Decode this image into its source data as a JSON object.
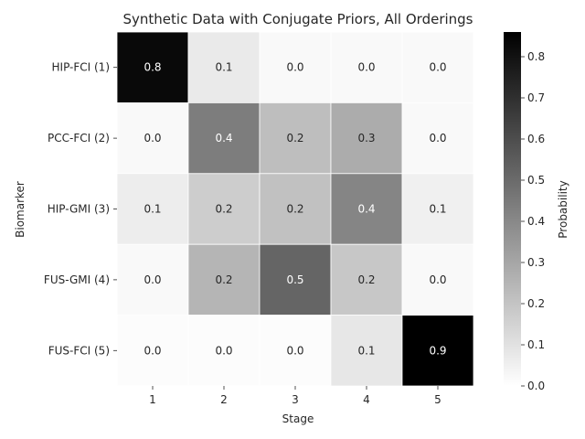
{
  "chart_data": {
    "type": "heatmap",
    "title": "Synthetic Data with Conjugate Priors, All Orderings",
    "xlabel": "Stage",
    "ylabel": "Biomarker",
    "x_categories": [
      "1",
      "2",
      "3",
      "4",
      "5"
    ],
    "y_categories": [
      "HIP-FCI (1)",
      "PCC-FCI (2)",
      "HIP-GMI (3)",
      "FUS-GMI (4)",
      "FUS-FCI (5)"
    ],
    "values": [
      [
        0.83,
        0.07,
        0.02,
        0.02,
        0.02
      ],
      [
        0.02,
        0.44,
        0.22,
        0.28,
        0.02
      ],
      [
        0.06,
        0.17,
        0.21,
        0.41,
        0.05
      ],
      [
        0.02,
        0.25,
        0.52,
        0.19,
        0.02
      ],
      [
        0.01,
        0.01,
        0.01,
        0.08,
        0.86
      ]
    ],
    "cell_labels": [
      [
        "0.8",
        "0.1",
        "0.0",
        "0.0",
        "0.0"
      ],
      [
        "0.0",
        "0.4",
        "0.2",
        "0.3",
        "0.0"
      ],
      [
        "0.1",
        "0.2",
        "0.2",
        "0.4",
        "0.1"
      ],
      [
        "0.0",
        "0.2",
        "0.5",
        "0.2",
        "0.0"
      ],
      [
        "0.0",
        "0.0",
        "0.0",
        "0.1",
        "0.9"
      ]
    ],
    "colorbar": {
      "label": "Probability",
      "min": 0.0,
      "max": 0.86,
      "ticks": [
        "0.0",
        "0.1",
        "0.2",
        "0.3",
        "0.4",
        "0.5",
        "0.6",
        "0.7",
        "0.8"
      ],
      "colormap": "Greys",
      "low_color": "#ffffff",
      "high_color": "#000000"
    },
    "grid": false
  }
}
